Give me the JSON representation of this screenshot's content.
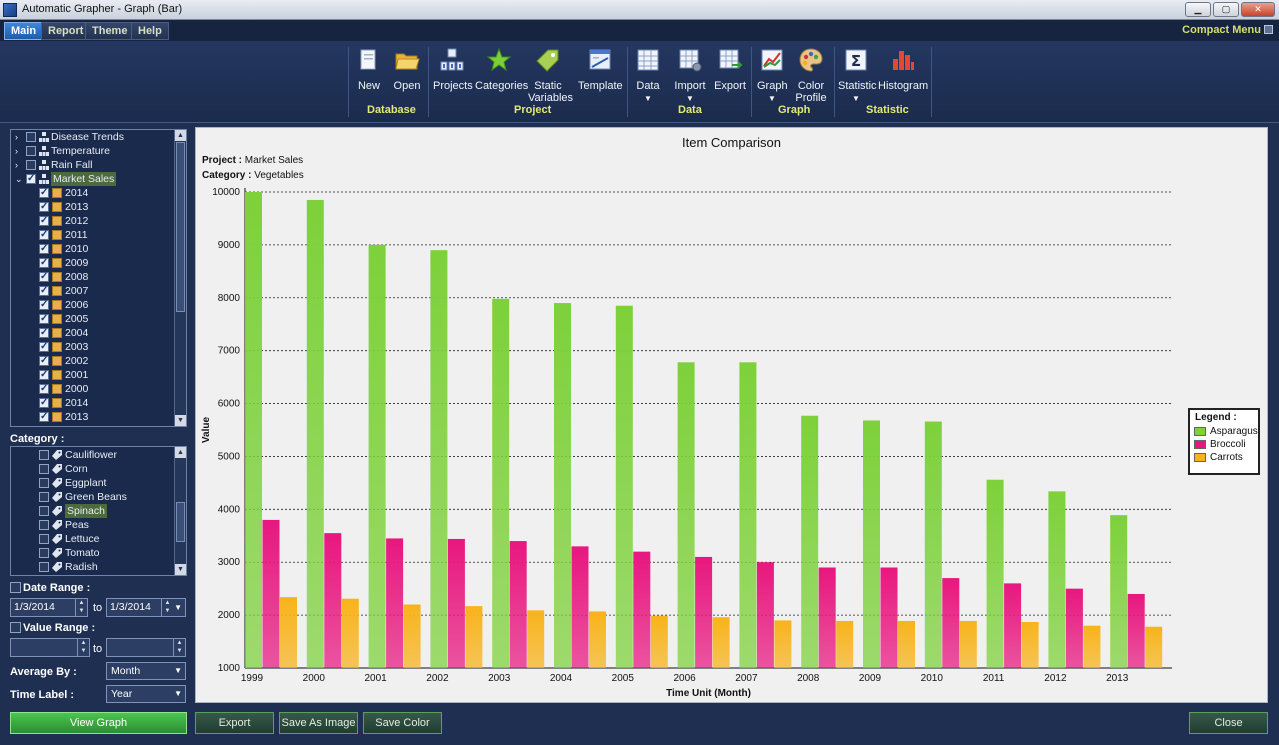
{
  "window": {
    "title": "Automatic Grapher - Graph (Bar)",
    "min_label": "▁",
    "max_label": "▢",
    "close_label": "✕"
  },
  "menu": {
    "tabs": [
      "Main",
      "Report",
      "Theme",
      "Help"
    ],
    "compact_menu": "Compact Menu"
  },
  "ribbon": {
    "buttons": {
      "new": "New",
      "open": "Open",
      "projects": "Projects",
      "categories": "Categories",
      "static_variables_1": "Static",
      "static_variables_2": "Variables",
      "template": "Template",
      "data": "Data",
      "import": "Import",
      "export": "Export",
      "graph": "Graph",
      "color_profile_1": "Color",
      "color_profile_2": "Profile",
      "statistic": "Statistic",
      "histogram": "Histogram"
    },
    "groups": {
      "database": "Database",
      "project": "Project",
      "data": "Data",
      "graph": "Graph",
      "statistic": "Statistic"
    }
  },
  "project_tree": {
    "projects": [
      "Disease Trends",
      "Temperature",
      "Rain Fall",
      "Market Sales"
    ],
    "years": [
      "2014",
      "2013",
      "2012",
      "2011",
      "2010",
      "2009",
      "2008",
      "2007",
      "2006",
      "2005",
      "2004",
      "2003",
      "2002",
      "2001",
      "2000",
      "2014",
      "2013"
    ]
  },
  "category_panel": {
    "label": "Category :",
    "items": [
      "Cauliflower",
      "Corn",
      "Eggplant",
      "Green Beans",
      "Spinach",
      "Peas",
      "Lettuce",
      "Tomato",
      "Radish"
    ]
  },
  "filters": {
    "date_range_label": "Date Range :",
    "date_from": "1/3/2014",
    "to_label": "to",
    "date_to": "1/3/2014",
    "value_range_label": "Value Range :",
    "value_to_label": "to",
    "average_by_label": "Average By :",
    "average_by_value": "Month",
    "time_label_label": "Time Label :",
    "time_label_value": "Year"
  },
  "chart_header": {
    "project_label": "Project :",
    "project_value": "Market Sales",
    "category_label": "Category :",
    "category_value": "Vegetables"
  },
  "legend": {
    "title": "Legend :"
  },
  "buttons": {
    "view_graph": "View Graph",
    "export": "Export",
    "save_as_image": "Save As Image",
    "save_color": "Save Color",
    "close": "Close"
  },
  "chart_data": {
    "type": "bar",
    "title": "Item Comparison",
    "xlabel": "Time Unit (Month)",
    "ylabel": "Value",
    "ylim": [
      1000,
      10000
    ],
    "yticks": [
      1000,
      2000,
      3000,
      4000,
      5000,
      6000,
      7000,
      8000,
      9000,
      10000
    ],
    "grid": true,
    "legend_position": "right",
    "categories": [
      "1999",
      "2000",
      "2001",
      "2002",
      "2003",
      "2004",
      "2005",
      "2006",
      "2007",
      "2008",
      "2009",
      "2010",
      "2011",
      "2012",
      "2013"
    ],
    "series": [
      {
        "name": "Asparagus",
        "color": "#7dd13a",
        "values": [
          10000,
          9850,
          9000,
          8900,
          7980,
          7900,
          7850,
          6780,
          6780,
          5770,
          5680,
          5660,
          4560,
          4340,
          3890
        ]
      },
      {
        "name": "Broccoli",
        "color": "#e8177f",
        "values": [
          3800,
          3550,
          3450,
          3440,
          3400,
          3300,
          3200,
          3100,
          3000,
          2900,
          2900,
          2700,
          2600,
          2500,
          2400
        ]
      },
      {
        "name": "Carrots",
        "color": "#f8b31a",
        "values": [
          2340,
          2310,
          2200,
          2170,
          2090,
          2070,
          1990,
          1960,
          1900,
          1890,
          1890,
          1890,
          1870,
          1800,
          1780
        ]
      }
    ]
  }
}
